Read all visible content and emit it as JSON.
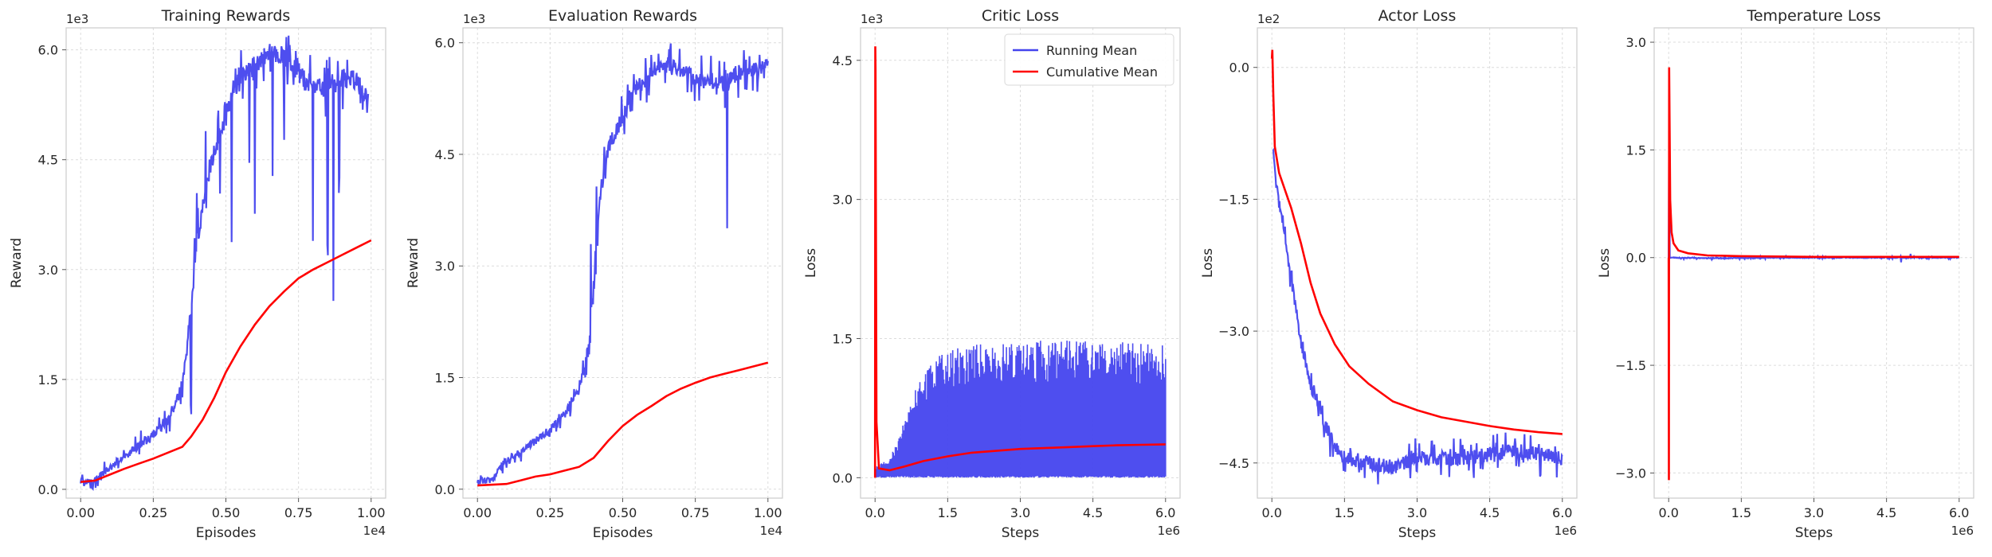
{
  "chart_data": [
    {
      "type": "line",
      "title": "Training Rewards",
      "xlabel": "Episodes",
      "ylabel": "Reward",
      "x_offset_label": "1e4",
      "y_offset_label": "1e3",
      "xlim": [
        -0.05,
        1.05
      ],
      "ylim": [
        -0.12,
        6.3
      ],
      "xticks": [
        0,
        0.25,
        0.5,
        0.75,
        1.0
      ],
      "xtick_labels": [
        "0.00",
        "0.25",
        "0.50",
        "0.75",
        "1.00"
      ],
      "yticks": [
        0,
        1.5,
        3.0,
        4.5,
        6.0
      ],
      "ytick_labels": [
        "0.0",
        "1.5",
        "3.0",
        "4.5",
        "6.0"
      ],
      "grid": true,
      "legend": null,
      "series": [
        {
          "color": "#4444ee",
          "style": "noisy",
          "noise": 0.1,
          "spikes": [
            [
              0.38,
              -1.4
            ],
            [
              0.4,
              1.0
            ],
            [
              0.43,
              0.9
            ],
            [
              0.48,
              -0.9
            ],
            [
              0.52,
              -2.4
            ],
            [
              0.58,
              -1.2
            ],
            [
              0.6,
              -2.0
            ],
            [
              0.66,
              -1.3
            ],
            [
              0.7,
              -1.1
            ],
            [
              0.8,
              -2.0
            ],
            [
              0.85,
              -2.2
            ],
            [
              0.87,
              -2.9
            ],
            [
              0.89,
              -1.4
            ]
          ],
          "points": [
            [
              0.0,
              0.1
            ],
            [
              0.05,
              0.12
            ],
            [
              0.1,
              0.3
            ],
            [
              0.15,
              0.45
            ],
            [
              0.2,
              0.6
            ],
            [
              0.25,
              0.75
            ],
            [
              0.3,
              0.95
            ],
            [
              0.34,
              1.3
            ],
            [
              0.36,
              1.7
            ],
            [
              0.38,
              2.5
            ],
            [
              0.4,
              3.4
            ],
            [
              0.43,
              4.1
            ],
            [
              0.46,
              4.6
            ],
            [
              0.5,
              5.2
            ],
            [
              0.55,
              5.6
            ],
            [
              0.6,
              5.8
            ],
            [
              0.65,
              5.95
            ],
            [
              0.7,
              5.9
            ],
            [
              0.75,
              5.7
            ],
            [
              0.8,
              5.5
            ],
            [
              0.85,
              5.5
            ],
            [
              0.9,
              5.6
            ],
            [
              0.95,
              5.6
            ],
            [
              0.99,
              5.3
            ]
          ]
        },
        {
          "color": "#ff0000",
          "style": "smooth",
          "points": [
            [
              0.0,
              0.1
            ],
            [
              0.05,
              0.12
            ],
            [
              0.1,
              0.2
            ],
            [
              0.15,
              0.28
            ],
            [
              0.2,
              0.35
            ],
            [
              0.25,
              0.42
            ],
            [
              0.3,
              0.5
            ],
            [
              0.35,
              0.58
            ],
            [
              0.38,
              0.72
            ],
            [
              0.42,
              0.95
            ],
            [
              0.46,
              1.25
            ],
            [
              0.5,
              1.6
            ],
            [
              0.55,
              1.95
            ],
            [
              0.6,
              2.25
            ],
            [
              0.65,
              2.5
            ],
            [
              0.7,
              2.7
            ],
            [
              0.75,
              2.88
            ],
            [
              0.8,
              3.0
            ],
            [
              0.85,
              3.1
            ],
            [
              0.9,
              3.2
            ],
            [
              0.95,
              3.3
            ],
            [
              1.0,
              3.4
            ]
          ]
        }
      ]
    },
    {
      "type": "line",
      "title": "Evaluation Rewards",
      "xlabel": "Episodes",
      "ylabel": "Reward",
      "x_offset_label": "1e4",
      "y_offset_label": "1e3",
      "xlim": [
        -0.05,
        1.05
      ],
      "ylim": [
        -0.12,
        6.2
      ],
      "xticks": [
        0,
        0.25,
        0.5,
        0.75,
        1.0
      ],
      "xtick_labels": [
        "0.00",
        "0.25",
        "0.50",
        "0.75",
        "1.00"
      ],
      "yticks": [
        0,
        1.5,
        3.0,
        4.5,
        6.0
      ],
      "ytick_labels": [
        "0.0",
        "1.5",
        "3.0",
        "4.5",
        "6.0"
      ],
      "grid": true,
      "legend": null,
      "series": [
        {
          "color": "#4444ee",
          "style": "noisy",
          "noise": 0.08,
          "spikes": [
            [
              0.39,
              1.0
            ],
            [
              0.41,
              0.8
            ],
            [
              0.86,
              -1.9
            ]
          ],
          "points": [
            [
              0.0,
              0.1
            ],
            [
              0.05,
              0.12
            ],
            [
              0.08,
              0.3
            ],
            [
              0.1,
              0.4
            ],
            [
              0.15,
              0.5
            ],
            [
              0.2,
              0.65
            ],
            [
              0.25,
              0.8
            ],
            [
              0.3,
              1.0
            ],
            [
              0.35,
              1.35
            ],
            [
              0.38,
              1.8
            ],
            [
              0.4,
              2.8
            ],
            [
              0.42,
              3.9
            ],
            [
              0.45,
              4.6
            ],
            [
              0.5,
              5.0
            ],
            [
              0.55,
              5.4
            ],
            [
              0.6,
              5.6
            ],
            [
              0.65,
              5.7
            ],
            [
              0.7,
              5.65
            ],
            [
              0.75,
              5.5
            ],
            [
              0.8,
              5.5
            ],
            [
              0.85,
              5.45
            ],
            [
              0.9,
              5.6
            ],
            [
              0.95,
              5.65
            ],
            [
              1.0,
              5.7
            ]
          ]
        },
        {
          "color": "#ff0000",
          "style": "smooth",
          "points": [
            [
              0.0,
              0.05
            ],
            [
              0.1,
              0.07
            ],
            [
              0.15,
              0.12
            ],
            [
              0.2,
              0.17
            ],
            [
              0.25,
              0.2
            ],
            [
              0.3,
              0.25
            ],
            [
              0.35,
              0.3
            ],
            [
              0.4,
              0.42
            ],
            [
              0.45,
              0.65
            ],
            [
              0.5,
              0.85
            ],
            [
              0.55,
              1.0
            ],
            [
              0.6,
              1.12
            ],
            [
              0.65,
              1.25
            ],
            [
              0.7,
              1.35
            ],
            [
              0.75,
              1.43
            ],
            [
              0.8,
              1.5
            ],
            [
              0.85,
              1.55
            ],
            [
              0.9,
              1.6
            ],
            [
              0.95,
              1.65
            ],
            [
              1.0,
              1.7
            ]
          ]
        }
      ]
    },
    {
      "type": "line",
      "title": "Critic Loss",
      "xlabel": "Steps",
      "ylabel": "Loss",
      "x_offset_label": "1e6",
      "y_offset_label": "1e3",
      "xlim": [
        -0.3,
        6.3
      ],
      "ylim": [
        -0.22,
        4.85
      ],
      "xticks": [
        0,
        1.5,
        3.0,
        4.5,
        6.0
      ],
      "xtick_labels": [
        "0.0",
        "1.5",
        "3.0",
        "4.5",
        "6.0"
      ],
      "yticks": [
        0,
        1.5,
        3.0,
        4.5
      ],
      "ytick_labels": [
        "0.0",
        "1.5",
        "3.0",
        "4.5"
      ],
      "grid": true,
      "legend": {
        "position": "upper right",
        "entries": [
          {
            "label": "Running Mean",
            "color": "#4444ee"
          },
          {
            "label": "Cumulative Mean",
            "color": "#ff0000"
          }
        ]
      },
      "series": [
        {
          "color": "#4444ee",
          "style": "band",
          "low": 0.02,
          "points": [
            [
              0.0,
              0.1
            ],
            [
              0.3,
              0.2
            ],
            [
              0.5,
              0.4
            ],
            [
              0.7,
              0.7
            ],
            [
              0.9,
              0.95
            ],
            [
              1.2,
              1.15
            ],
            [
              1.5,
              1.25
            ],
            [
              2.0,
              1.3
            ],
            [
              2.5,
              1.32
            ],
            [
              3.0,
              1.33
            ],
            [
              3.5,
              1.35
            ],
            [
              4.0,
              1.35
            ],
            [
              4.5,
              1.34
            ],
            [
              5.0,
              1.33
            ],
            [
              5.5,
              1.32
            ],
            [
              6.0,
              1.32
            ]
          ]
        },
        {
          "color": "#ff0000",
          "style": "smooth",
          "points": [
            [
              0.0,
              0.0
            ],
            [
              0.005,
              4.65
            ],
            [
              0.01,
              4.4
            ],
            [
              0.03,
              0.6
            ],
            [
              0.08,
              0.1
            ],
            [
              0.3,
              0.08
            ],
            [
              0.6,
              0.12
            ],
            [
              1.0,
              0.18
            ],
            [
              1.5,
              0.23
            ],
            [
              2.0,
              0.27
            ],
            [
              2.5,
              0.29
            ],
            [
              3.0,
              0.31
            ],
            [
              3.5,
              0.32
            ],
            [
              4.0,
              0.33
            ],
            [
              4.5,
              0.34
            ],
            [
              5.0,
              0.35
            ],
            [
              5.5,
              0.355
            ],
            [
              6.0,
              0.36
            ]
          ]
        }
      ]
    },
    {
      "type": "line",
      "title": "Actor Loss",
      "xlabel": "Steps",
      "ylabel": "Loss",
      "x_offset_label": "1e6",
      "y_offset_label": "1e2",
      "xlim": [
        -0.3,
        6.3
      ],
      "ylim": [
        -4.9,
        0.45
      ],
      "xticks": [
        0,
        1.5,
        3.0,
        4.5,
        6.0
      ],
      "xtick_labels": [
        "0.0",
        "1.5",
        "3.0",
        "4.5",
        "6.0"
      ],
      "yticks": [
        0,
        -1.5,
        -3.0,
        -4.5
      ],
      "ytick_labels": [
        "0.0",
        "−1.5",
        "−3.0",
        "−4.5"
      ],
      "grid": true,
      "legend": null,
      "series": [
        {
          "color": "#4444ee",
          "style": "noisy",
          "noise": 0.06,
          "spikes": [],
          "points": [
            [
              0.02,
              -0.9
            ],
            [
              0.08,
              -1.3
            ],
            [
              0.2,
              -1.7
            ],
            [
              0.4,
              -2.4
            ],
            [
              0.6,
              -3.1
            ],
            [
              0.8,
              -3.6
            ],
            [
              1.0,
              -3.9
            ],
            [
              1.2,
              -4.2
            ],
            [
              1.4,
              -4.4
            ],
            [
              1.6,
              -4.45
            ],
            [
              2.0,
              -4.5
            ],
            [
              2.5,
              -4.55
            ],
            [
              3.0,
              -4.45
            ],
            [
              3.5,
              -4.45
            ],
            [
              4.0,
              -4.45
            ],
            [
              4.5,
              -4.4
            ],
            [
              5.0,
              -4.35
            ],
            [
              5.5,
              -4.4
            ],
            [
              6.0,
              -4.45
            ]
          ]
        },
        {
          "color": "#ff0000",
          "style": "smooth",
          "points": [
            [
              0.0,
              0.1
            ],
            [
              0.01,
              0.2
            ],
            [
              0.03,
              -0.3
            ],
            [
              0.06,
              -0.9
            ],
            [
              0.15,
              -1.2
            ],
            [
              0.4,
              -1.6
            ],
            [
              0.6,
              -2.0
            ],
            [
              0.8,
              -2.45
            ],
            [
              1.0,
              -2.8
            ],
            [
              1.3,
              -3.15
            ],
            [
              1.6,
              -3.4
            ],
            [
              2.0,
              -3.6
            ],
            [
              2.5,
              -3.8
            ],
            [
              3.0,
              -3.9
            ],
            [
              3.5,
              -3.98
            ],
            [
              4.0,
              -4.03
            ],
            [
              4.5,
              -4.08
            ],
            [
              5.0,
              -4.12
            ],
            [
              5.5,
              -4.15
            ],
            [
              6.0,
              -4.17
            ]
          ]
        }
      ]
    },
    {
      "type": "line",
      "title": "Temperature Loss",
      "xlabel": "Steps",
      "ylabel": "Loss",
      "x_offset_label": "1e6",
      "y_offset_label": "",
      "xlim": [
        -0.3,
        6.3
      ],
      "ylim": [
        -3.35,
        3.2
      ],
      "xticks": [
        0,
        1.5,
        3.0,
        4.5,
        6.0
      ],
      "xtick_labels": [
        "0.0",
        "1.5",
        "3.0",
        "4.5",
        "6.0"
      ],
      "yticks": [
        -3.0,
        -1.5,
        0,
        1.5,
        3.0
      ],
      "ytick_labels": [
        "−3.0",
        "−1.5",
        "0.0",
        "1.5",
        "3.0"
      ],
      "grid": true,
      "legend": null,
      "series": [
        {
          "color": "#4444ee",
          "style": "noisy",
          "noise": 0.015,
          "spikes": [
            [
              4.8,
              -0.08
            ],
            [
              5.0,
              0.05
            ]
          ],
          "points": [
            [
              0.0,
              0.0
            ],
            [
              0.01,
              2.8
            ],
            [
              0.02,
              0.0
            ],
            [
              1.0,
              -0.01
            ],
            [
              2.0,
              0.0
            ],
            [
              3.0,
              0.0
            ],
            [
              4.0,
              0.0
            ],
            [
              5.0,
              0.0
            ],
            [
              6.0,
              0.0
            ]
          ]
        },
        {
          "color": "#ff0000",
          "style": "smooth",
          "points": [
            [
              0.0,
              0.0
            ],
            [
              0.005,
              -3.1
            ],
            [
              0.01,
              2.65
            ],
            [
              0.03,
              0.8
            ],
            [
              0.06,
              0.35
            ],
            [
              0.1,
              0.2
            ],
            [
              0.2,
              0.1
            ],
            [
              0.4,
              0.06
            ],
            [
              0.8,
              0.03
            ],
            [
              1.5,
              0.02
            ],
            [
              3.0,
              0.01
            ],
            [
              4.5,
              0.01
            ],
            [
              6.0,
              0.01
            ]
          ]
        }
      ]
    }
  ]
}
